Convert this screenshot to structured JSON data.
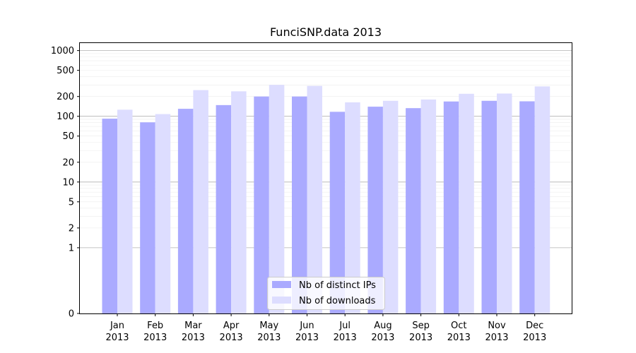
{
  "chart_data": {
    "type": "bar",
    "title": "FunciSNP.data 2013",
    "xlabel": "",
    "ylabel": "",
    "yscale": "symlog",
    "ylim": [
      0,
      1300
    ],
    "yticks": [
      0,
      1,
      2,
      5,
      10,
      20,
      50,
      100,
      200,
      500,
      1000
    ],
    "ytick_labels": [
      "0",
      "1",
      "2",
      "5",
      "10",
      "20",
      "50",
      "100",
      "200",
      "500",
      "1000"
    ],
    "categories": [
      {
        "month": "Jan",
        "year": "2013"
      },
      {
        "month": "Feb",
        "year": "2013"
      },
      {
        "month": "Mar",
        "year": "2013"
      },
      {
        "month": "Apr",
        "year": "2013"
      },
      {
        "month": "May",
        "year": "2013"
      },
      {
        "month": "Jun",
        "year": "2013"
      },
      {
        "month": "Jul",
        "year": "2013"
      },
      {
        "month": "Aug",
        "year": "2013"
      },
      {
        "month": "Sep",
        "year": "2013"
      },
      {
        "month": "Oct",
        "year": "2013"
      },
      {
        "month": "Nov",
        "year": "2013"
      },
      {
        "month": "Dec",
        "year": "2013"
      }
    ],
    "series": [
      {
        "name": "Nb of distinct IPs",
        "color": "#aaaaff",
        "values": [
          92,
          81,
          130,
          148,
          200,
          200,
          117,
          140,
          133,
          168,
          172,
          169
        ]
      },
      {
        "name": "Nb of downloads",
        "color": "#ddddff",
        "values": [
          126,
          108,
          250,
          240,
          300,
          290,
          163,
          172,
          180,
          220,
          222,
          285
        ]
      }
    ],
    "grid": true,
    "legend_position": "bottom-center"
  }
}
